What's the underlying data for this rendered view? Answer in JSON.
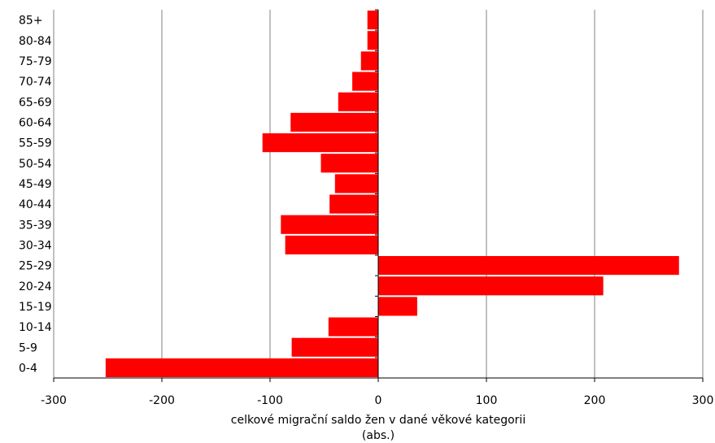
{
  "chart_data": {
    "type": "bar",
    "orientation": "horizontal",
    "categories": [
      "0-4",
      "5-9",
      "10-14",
      "15-19",
      "20-24",
      "25-29",
      "30-34",
      "35-39",
      "40-44",
      "45-49",
      "50-54",
      "55-59",
      "60-64",
      "65-69",
      "70-74",
      "75-79",
      "80-84",
      "85+"
    ],
    "values": [
      -252,
      -80,
      -46,
      36,
      208,
      278,
      -86,
      -90,
      -45,
      -40,
      -53,
      -107,
      -81,
      -37,
      -24,
      -16,
      -10,
      -10
    ],
    "xlim": [
      -300,
      300
    ],
    "xticks": [
      -300,
      -200,
      -100,
      0,
      100,
      200,
      300
    ],
    "tick_labels": [
      "-300",
      "-200",
      "-100",
      "0",
      "100",
      "200",
      "300"
    ],
    "xlabel_line1": "celkové migrační saldo žen v dané věkové kategorii",
    "xlabel_line2": "(abs.)",
    "grid": "vertical",
    "bar_color": "#ff0000"
  }
}
